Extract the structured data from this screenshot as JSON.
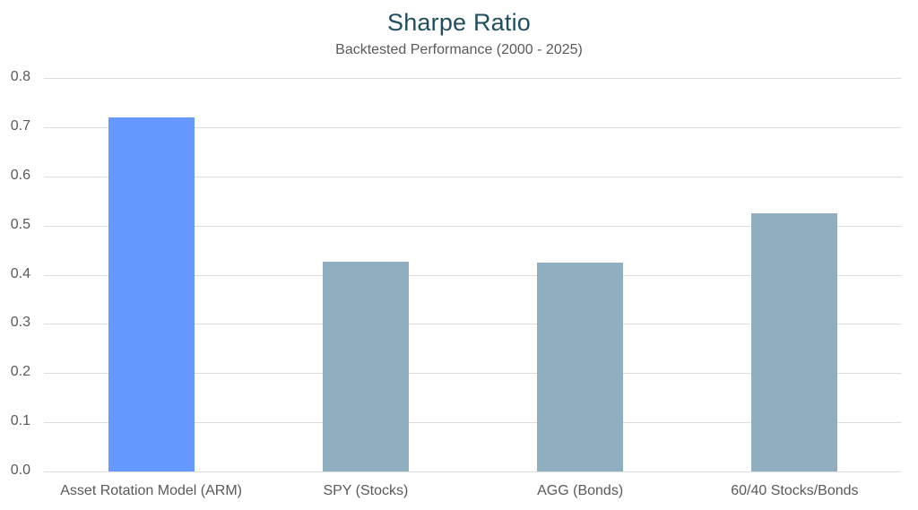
{
  "chart_data": {
    "type": "bar",
    "title": "Sharpe Ratio",
    "subtitle": "Backtested Performance (2000 - 2025)",
    "xlabel": "",
    "ylabel": "",
    "ylim": [
      0,
      0.8
    ],
    "yticks": [
      "0.0",
      "0.1",
      "0.2",
      "0.3",
      "0.4",
      "0.5",
      "0.6",
      "0.7",
      "0.8"
    ],
    "grid": true,
    "legend": null,
    "categories": [
      "Asset Rotation Model (ARM)",
      "SPY (Stocks)",
      "AGG (Bonds)",
      "60/40 Stocks/Bonds"
    ],
    "values": [
      0.72,
      0.426,
      0.424,
      0.524
    ],
    "colors": [
      "#6699ff",
      "#8fafc1",
      "#8fafc1",
      "#8fafc1"
    ]
  },
  "header": {
    "title": "Sharpe Ratio",
    "subtitle": "Backtested Performance (2000 - 2025)"
  },
  "colors": {
    "title": "#1f4e5f",
    "highlight_bar": "#6699ff",
    "default_bar": "#8fafc1",
    "gridline": "#dedede",
    "axis_text": "#595959"
  }
}
